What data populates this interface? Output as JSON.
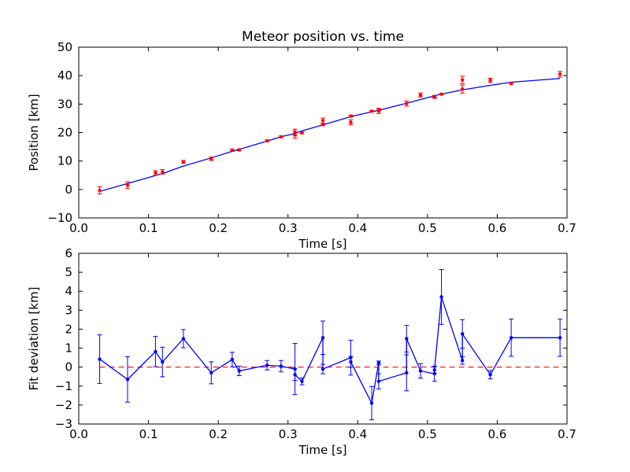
{
  "chart_data": [
    {
      "type": "scatter",
      "title": "Meteor position vs. time",
      "xlabel": "Time [s]",
      "ylabel": "Position [km]",
      "xlim": [
        0.0,
        0.7
      ],
      "ylim": [
        -10,
        50
      ],
      "xticks": [
        "0.0",
        "0.1",
        "0.2",
        "0.3",
        "0.4",
        "0.5",
        "0.6",
        "0.7"
      ],
      "yticks": [
        "−10",
        "0",
        "10",
        "20",
        "30",
        "40",
        "50"
      ],
      "grid": false,
      "colors": {
        "points": "#ff0000",
        "fit": "#0000ff"
      },
      "series": [
        {
          "kind": "points-with-errorbars",
          "x": [
            0.03,
            0.07,
            0.11,
            0.12,
            0.15,
            0.19,
            0.22,
            0.23,
            0.27,
            0.29,
            0.31,
            0.31,
            0.32,
            0.35,
            0.35,
            0.39,
            0.39,
            0.42,
            0.43,
            0.43,
            0.47,
            0.49,
            0.51,
            0.51,
            0.52,
            0.55,
            0.55,
            0.59,
            0.62,
            0.69
          ],
          "y": [
            -0.3,
            1.5,
            5.8,
            6.2,
            9.7,
            10.8,
            13.8,
            13.9,
            17.1,
            18.5,
            19.3,
            20.0,
            19.9,
            24.2,
            22.8,
            23.6,
            25.8,
            27.5,
            27.6,
            28.0,
            30.2,
            33.2,
            32.5,
            32.7,
            33.5,
            35.3,
            38.5,
            38.4,
            37.3,
            40.5
          ],
          "yerr": [
            1.3,
            1.2,
            0.8,
            0.8,
            0.5,
            0.6,
            0.4,
            0.3,
            0.3,
            0.3,
            1.3,
            1.2,
            0.3,
            0.9,
            0.4,
            0.9,
            0.3,
            0.2,
            0.9,
            0.4,
            0.9,
            0.7,
            0.5,
            0.3,
            0.2,
            1.4,
            1.3,
            0.7,
            0.3,
            1.0
          ]
        },
        {
          "kind": "fit-line",
          "x": [
            0.03,
            0.07,
            0.11,
            0.12,
            0.15,
            0.19,
            0.22,
            0.23,
            0.27,
            0.29,
            0.31,
            0.32,
            0.35,
            0.39,
            0.42,
            0.43,
            0.47,
            0.49,
            0.51,
            0.52,
            0.55,
            0.59,
            0.62,
            0.69
          ],
          "y": [
            -0.7,
            2.1,
            4.9,
            5.6,
            8.2,
            11.1,
            13.4,
            14.1,
            17.0,
            18.5,
            19.7,
            20.6,
            22.7,
            25.6,
            27.3,
            27.8,
            30.3,
            31.6,
            32.9,
            33.5,
            35.0,
            36.6,
            37.7,
            39.0
          ]
        }
      ]
    },
    {
      "type": "line",
      "xlabel": "Time [s]",
      "ylabel": "Fit deviation [km]",
      "xlim": [
        0.0,
        0.7
      ],
      "ylim": [
        -3,
        6
      ],
      "xticks": [
        "0.0",
        "0.1",
        "0.2",
        "0.3",
        "0.4",
        "0.5",
        "0.6",
        "0.7"
      ],
      "yticks": [
        "−3",
        "−2",
        "−1",
        "0",
        "1",
        "2",
        "3",
        "4",
        "5",
        "6"
      ],
      "grid": false,
      "colors": {
        "series": "#0000ff",
        "zero_line": "#ff0000"
      },
      "zero_line": 0,
      "series": [
        {
          "kind": "line-with-errorbars",
          "x": [
            0.03,
            0.07,
            0.11,
            0.12,
            0.15,
            0.19,
            0.22,
            0.23,
            0.27,
            0.29,
            0.31,
            0.31,
            0.32,
            0.35,
            0.35,
            0.39,
            0.39,
            0.42,
            0.43,
            0.43,
            0.47,
            0.47,
            0.49,
            0.51,
            0.51,
            0.52,
            0.55,
            0.55,
            0.59,
            0.62,
            0.69
          ],
          "y": [
            0.42,
            -0.65,
            0.82,
            0.27,
            1.5,
            -0.3,
            0.4,
            -0.2,
            0.1,
            0.05,
            -0.1,
            -0.4,
            -0.75,
            1.55,
            -0.1,
            0.5,
            0.28,
            -1.9,
            0.22,
            -0.75,
            -0.3,
            1.5,
            -0.2,
            -0.35,
            -0.15,
            3.7,
            0.35,
            1.75,
            -0.4,
            1.55,
            1.55
          ],
          "yerr": [
            1.28,
            1.2,
            0.8,
            0.78,
            0.48,
            0.58,
            0.38,
            0.25,
            0.25,
            0.3,
            1.35,
            0.3,
            0.18,
            0.88,
            0.25,
            0.92,
            0.28,
            0.88,
            0.1,
            0.4,
            0.95,
            0.7,
            0.38,
            0.4,
            0.18,
            1.45,
            0.2,
            0.75,
            0.22,
            0.98,
            0.98
          ]
        }
      ]
    }
  ]
}
